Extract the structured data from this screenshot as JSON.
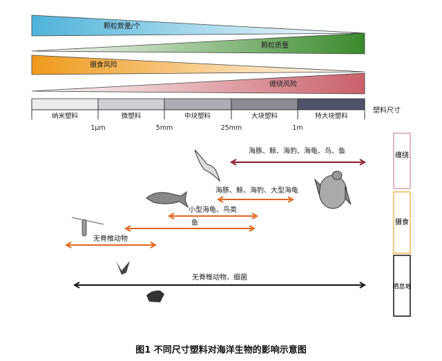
{
  "gradients": [
    {
      "label": "颗粒数量/个",
      "color": "#4fb3d9",
      "direction": "wide-left"
    },
    {
      "label": "颗粒质量",
      "color": "#3a8a2c",
      "direction": "wide-right"
    },
    {
      "label": "摄食风险",
      "color": "#f09a1c",
      "direction": "wide-left"
    },
    {
      "label": "缠绕风险",
      "color": "#c9606a",
      "direction": "wide-right"
    }
  ],
  "size_bar": {
    "title": "塑料尺寸",
    "categories": [
      "纳米塑料",
      "微塑料",
      "中块塑料",
      "大块塑料",
      "特大块塑料"
    ],
    "colors": [
      "#ececee",
      "#cfcfd4",
      "#adadb4",
      "#8c8c95",
      "#50526a"
    ],
    "thresholds": [
      "1μm",
      "5mm",
      "25mm",
      "1m"
    ]
  },
  "arrows": [
    {
      "label": "海豚、鲸、海豹、海龟、鸟、鱼",
      "color": "#8b1a2a"
    },
    {
      "label": "海豚、鲸、海豹、大型海龟",
      "color": "#e0641a"
    },
    {
      "label": "小型海龟、鸟类",
      "color": "#e0641a"
    },
    {
      "label": "鱼",
      "color": "#e0641a"
    },
    {
      "label": "无脊椎动物",
      "color": "#e0641a"
    },
    {
      "label": "无脊椎动物、细菌",
      "color": "#111111"
    }
  ],
  "categories": [
    {
      "label": "缠绕",
      "color": "#d9a0ab"
    },
    {
      "label": "摄食",
      "color": "#f0b650"
    },
    {
      "label": "栖息地",
      "color": "#111111"
    }
  ],
  "icons": [
    "bird-icon",
    "fish-icon",
    "turtle-icon",
    "shrimp-icon",
    "coral-icon",
    "sponge-icon"
  ],
  "caption": "图1   不同尺寸塑料对海洋生物的影响示意图"
}
